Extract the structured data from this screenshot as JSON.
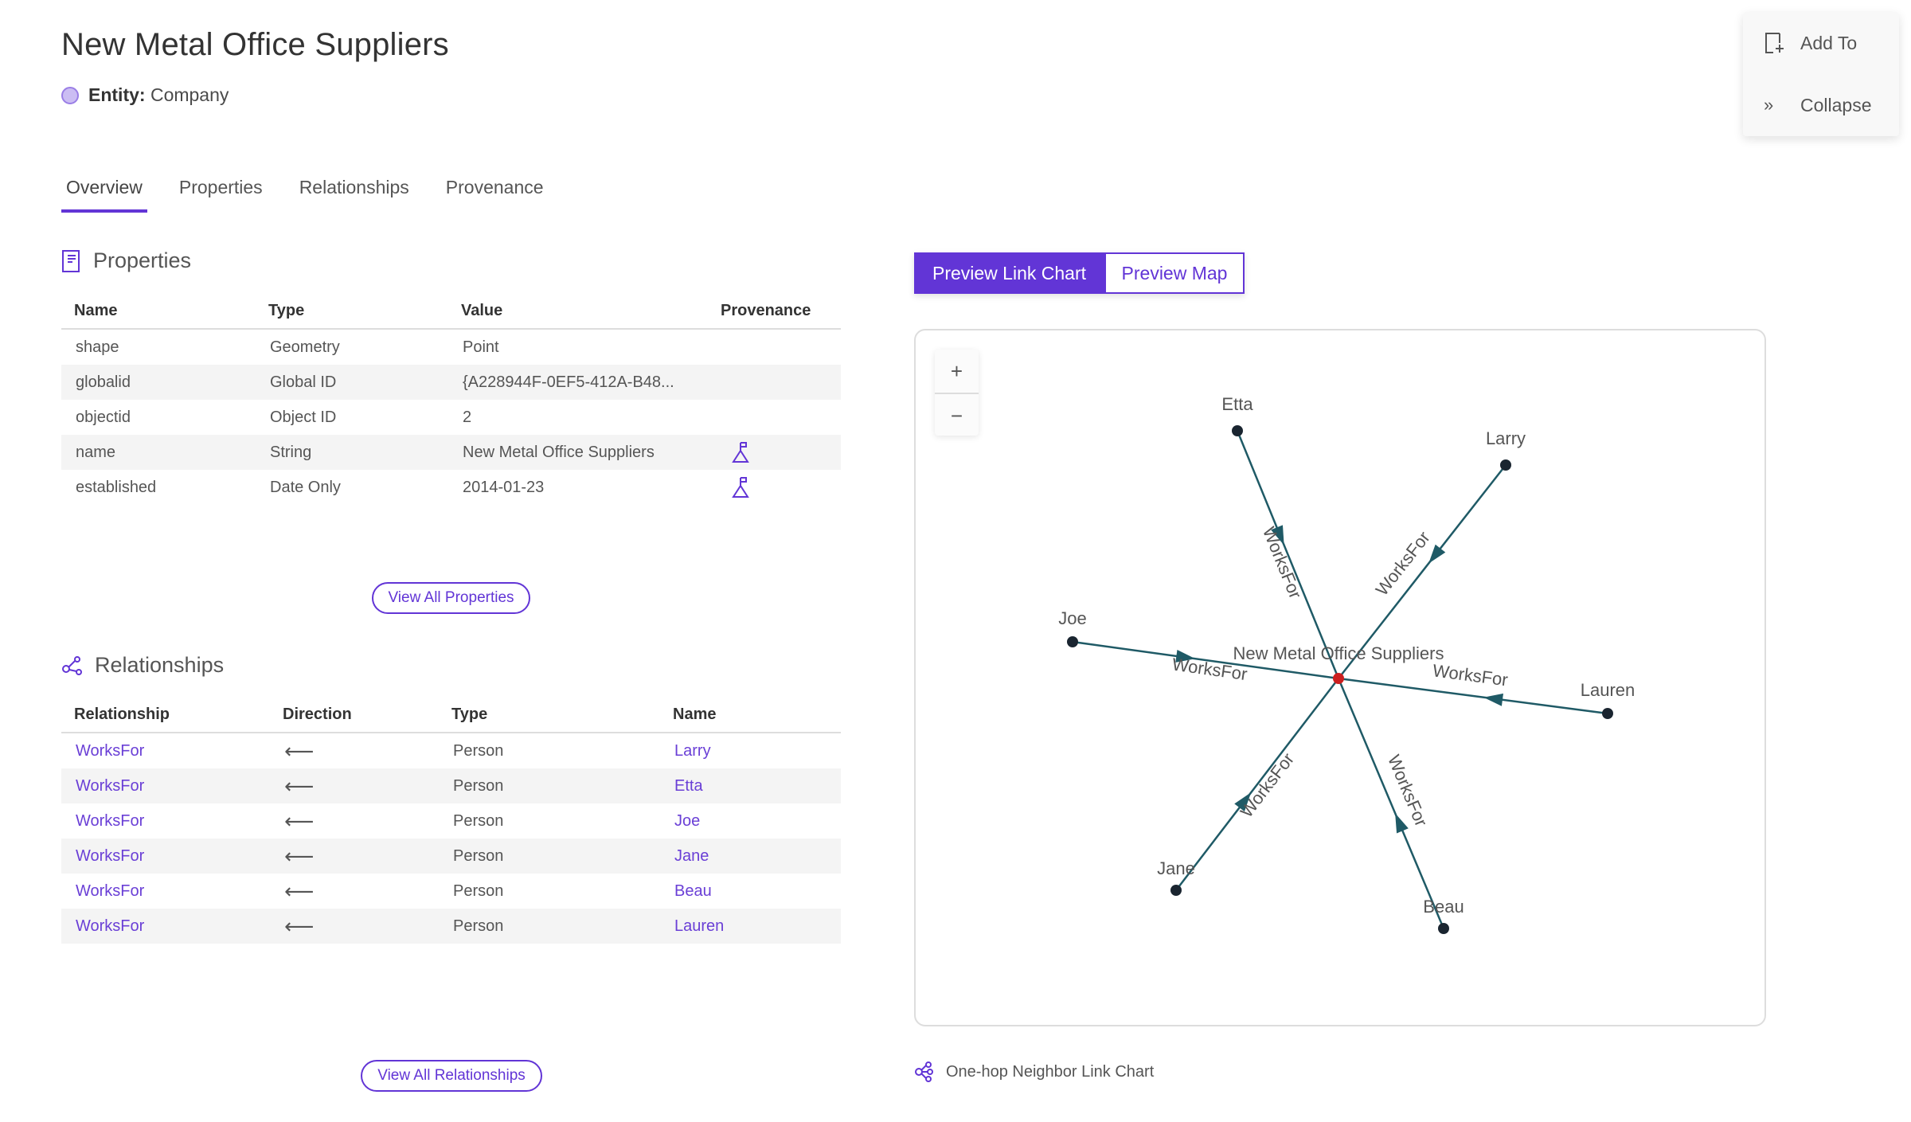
{
  "header": {
    "title": "New Metal Office Suppliers",
    "entity_label": "Entity:",
    "entity_value": "Company"
  },
  "tabs": [
    {
      "label": "Overview",
      "active": true
    },
    {
      "label": "Properties"
    },
    {
      "label": "Relationships"
    },
    {
      "label": "Provenance"
    }
  ],
  "properties": {
    "title": "Properties",
    "columns": [
      "Name",
      "Type",
      "Value",
      "Provenance"
    ],
    "rows": [
      {
        "name": "shape",
        "type": "Geometry",
        "value": "Point",
        "provenance": false
      },
      {
        "name": "globalid",
        "type": "Global ID",
        "value": "{A228944F-0EF5-412A-B48...",
        "provenance": false
      },
      {
        "name": "objectid",
        "type": "Object ID",
        "value": "2",
        "provenance": false
      },
      {
        "name": "name",
        "type": "String",
        "value": "New Metal Office Suppliers",
        "provenance": true
      },
      {
        "name": "established",
        "type": "Date Only",
        "value": "2014-01-23",
        "provenance": true
      }
    ],
    "view_all": "View All Properties"
  },
  "relationships": {
    "title": "Relationships",
    "columns": [
      "Relationship",
      "Direction",
      "Type",
      "Name"
    ],
    "rows": [
      {
        "relationship": "WorksFor",
        "direction": "⟵",
        "type": "Person",
        "name": "Larry"
      },
      {
        "relationship": "WorksFor",
        "direction": "⟵",
        "type": "Person",
        "name": "Etta"
      },
      {
        "relationship": "WorksFor",
        "direction": "⟵",
        "type": "Person",
        "name": "Joe"
      },
      {
        "relationship": "WorksFor",
        "direction": "⟵",
        "type": "Person",
        "name": "Jane"
      },
      {
        "relationship": "WorksFor",
        "direction": "⟵",
        "type": "Person",
        "name": "Beau"
      },
      {
        "relationship": "WorksFor",
        "direction": "⟵",
        "type": "Person",
        "name": "Lauren"
      }
    ],
    "view_all": "View All Relationships"
  },
  "preview": {
    "link_chart": "Preview Link Chart",
    "map": "Preview Map",
    "active": "link_chart"
  },
  "zoom": {
    "in": "+",
    "out": "−"
  },
  "link_chart": {
    "center": "New Metal Office Suppliers",
    "edge_label": "WorksFor",
    "neighbors": [
      "Etta",
      "Larry",
      "Joe",
      "Lauren",
      "Jane",
      "Beau"
    ],
    "colors": {
      "edge": "#1f5a66",
      "node": "#1a2530",
      "center": "#cc1f1f"
    }
  },
  "caption": "One-hop Neighbor Link Chart",
  "side_panel": {
    "add_to": "Add To",
    "collapse": "Collapse"
  },
  "colors": {
    "accent": "#6235d6"
  }
}
